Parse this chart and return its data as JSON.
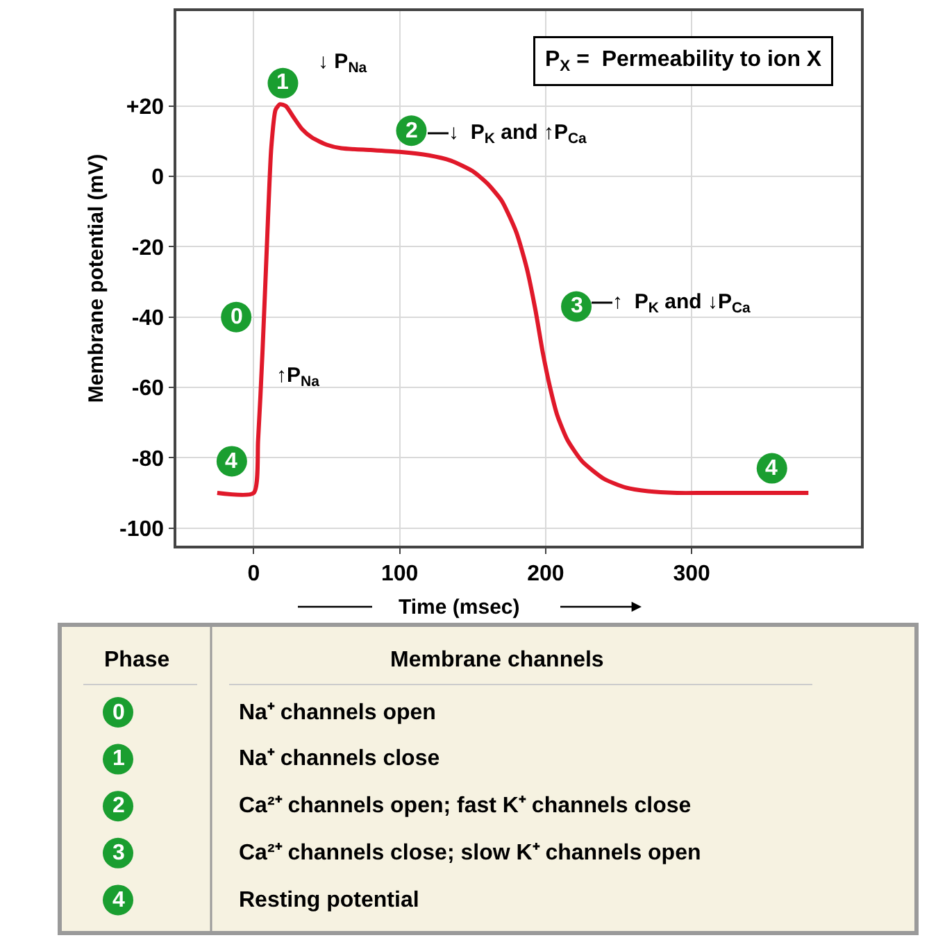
{
  "chart_data": {
    "type": "line",
    "x": [
      -25,
      0,
      3,
      6,
      9,
      12,
      15,
      18,
      22,
      27,
      33,
      40,
      50,
      60,
      80,
      100,
      120,
      135,
      150,
      160,
      170,
      180,
      187,
      193,
      198,
      203,
      208,
      215,
      225,
      240,
      255,
      270,
      290,
      310,
      380
    ],
    "series": [
      {
        "color": "#e0192a",
        "values": [
          -90,
          -90,
          -75,
          -50,
          -20,
          8,
          19,
          20.5,
          20,
          17,
          13.5,
          11,
          9,
          8,
          7.5,
          7,
          6,
          4.5,
          1.5,
          -2,
          -7,
          -16,
          -26,
          -38,
          -50,
          -60,
          -68,
          -75,
          -81,
          -86,
          -88.5,
          -89.5,
          -90,
          -90,
          -90
        ]
      }
    ],
    "xlabel": "Time (msec)",
    "ylabel": "Membrane potential (mV)",
    "xlim": [
      -53,
      416
    ],
    "ylim": [
      -105,
      47
    ],
    "xticks": [
      0,
      100,
      200,
      300
    ],
    "yticks": [
      {
        "value": 20,
        "label": "+20"
      },
      0,
      -20,
      -40,
      -60,
      -80,
      -100
    ],
    "grid": true,
    "marker": "none",
    "line_style": "solid",
    "annotations": [
      {
        "text": "1",
        "x": 20,
        "y": 26.5
      },
      {
        "text": "2",
        "x": 108,
        "y": 13
      },
      {
        "text": "3",
        "x": 221,
        "y": -37
      },
      {
        "text": "0",
        "x": -12,
        "y": -40
      },
      {
        "text": "4",
        "x": -15,
        "y": -81
      },
      {
        "text": "4",
        "x": 355,
        "y": -83
      },
      "↓ P$_{Na}$",
      "—↓  P$_{K}$ and ↑P$_{Ca}$",
      "—↑  P$_{K}$ and ↓P$_{Ca}$",
      "↑P$_{Na}$",
      "P$_{X}$ =  Permeability to ion X",
      "Phase",
      "Membrane channels",
      "0",
      "Na⁺ channels open",
      "1",
      "Na⁺ channels close",
      "2",
      "Ca²⁺ channels open; fast K⁺ channels close",
      "3",
      "Ca²⁺ channels close; slow K⁺ channels open",
      "4",
      "Resting potential"
    ]
  }
}
